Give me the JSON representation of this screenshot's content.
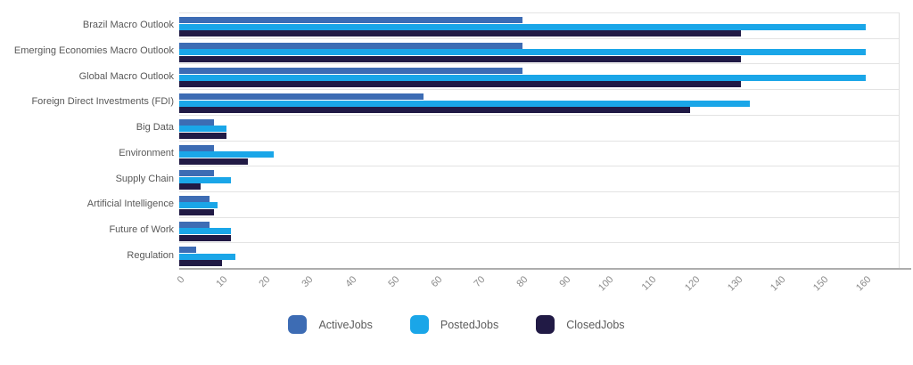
{
  "chart_data": {
    "type": "bar",
    "orientation": "horizontal",
    "title": "",
    "xlabel": "",
    "ylabel": "",
    "categories": [
      "Brazil Macro Outlook",
      "Emerging Economies Macro Outlook",
      "Global Macro Outlook",
      "Foreign Direct Investments (FDI)",
      "Big Data",
      "Environment",
      "Supply Chain",
      "Artificial Intelligence",
      "Future of Work",
      "Regulation"
    ],
    "series": [
      {
        "name": "ActiveJobs",
        "color": "#3D6CB4",
        "values": [
          80,
          80,
          80,
          57,
          8,
          8,
          8,
          7,
          7,
          4
        ]
      },
      {
        "name": "PostedJobs",
        "color": "#1AA6E8",
        "values": [
          160,
          160,
          160,
          133,
          11,
          22,
          12,
          9,
          12,
          13
        ]
      },
      {
        "name": "ClosedJobs",
        "color": "#211A45",
        "values": [
          131,
          131,
          131,
          119,
          11,
          16,
          5,
          8,
          12,
          10
        ]
      }
    ],
    "xlim": [
      0,
      160
    ],
    "x_ticks": [
      0,
      10,
      20,
      30,
      40,
      50,
      60,
      70,
      80,
      90,
      100,
      110,
      120,
      130,
      140,
      150,
      160
    ],
    "grid": "horizontal category separators, right plot border, bottom axis line",
    "legend_position": "bottom-center",
    "colors": {
      "grid": "#e3e3e3",
      "axis_line": "#adadad",
      "category_label_text": "#585858",
      "tick_label_text": "#8b8b8b",
      "legend_label_text": "#5c5c5c"
    }
  },
  "legend": {
    "items": [
      "ActiveJobs",
      "PostedJobs",
      "ClosedJobs"
    ]
  }
}
